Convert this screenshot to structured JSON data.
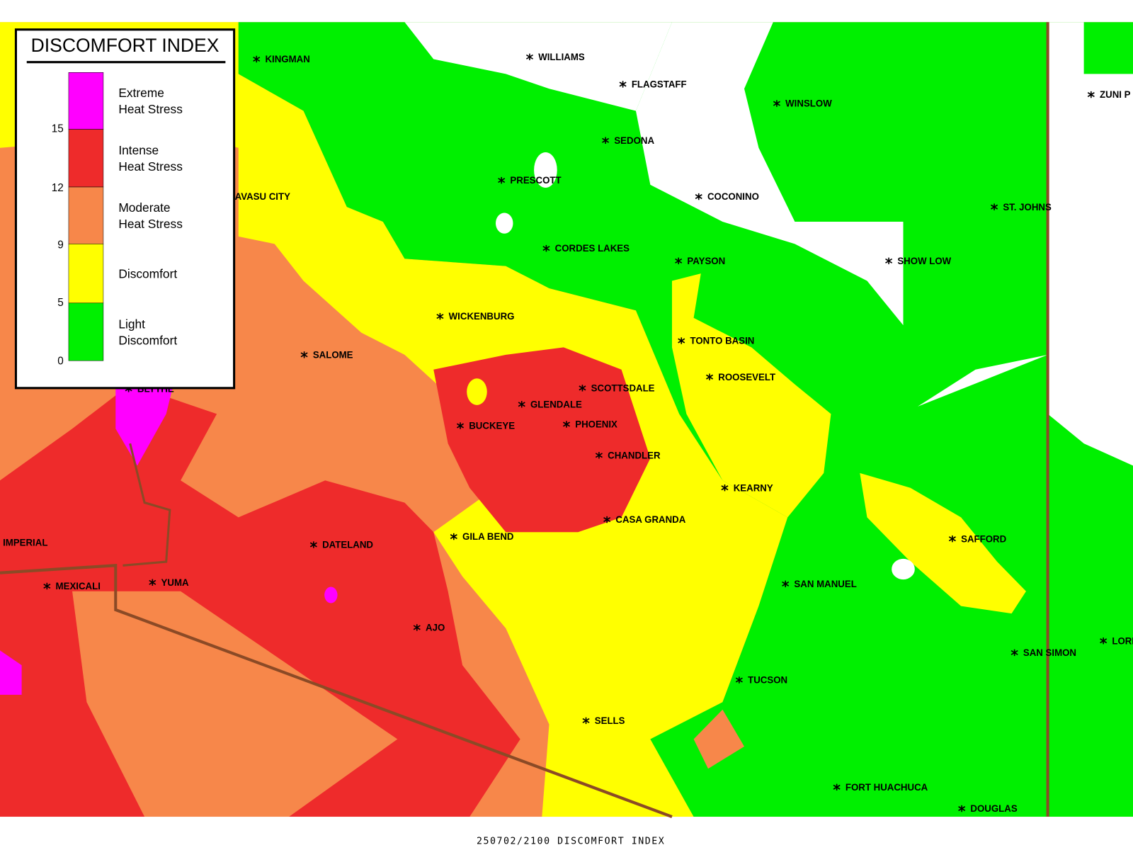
{
  "legend": {
    "title": "DISCOMFORT INDEX",
    "categories": [
      {
        "lines": [
          "Extreme",
          "Heat Stress"
        ],
        "color": "#ff00ff"
      },
      {
        "lines": [
          "Intense",
          "Heat Stress"
        ],
        "color": "#ee2b2b"
      },
      {
        "lines": [
          "Moderate",
          "Heat Stress"
        ],
        "color": "#f7874a"
      },
      {
        "lines": [
          "Discomfort"
        ],
        "color": "#ffff00"
      },
      {
        "lines": [
          "Light",
          "Discomfort"
        ],
        "color": "#00f000"
      }
    ],
    "ticks": [
      15,
      12,
      9,
      5,
      0
    ]
  },
  "cities": [
    "KINGMAN",
    "WILLIAMS",
    "FLAGSTAFF",
    "ZUNI P",
    "WINSLOW",
    "SEDONA",
    "PRESCOTT",
    "COCONINO",
    "AVASU CITY",
    "ST. JOHNS",
    "CORDES LAKES",
    "PAYSON",
    "SHOW LOW",
    "WICKENBURG",
    "TONTO BASIN",
    "SALOME",
    "ROOSEVELT",
    "BLYTHE",
    "SCOTTSDALE",
    "GLENDALE",
    "BUCKEYE",
    "PHOENIX",
    "CHANDLER",
    "KEARNY",
    "CASA GRANDA",
    "GILA BEND",
    "IMPERIAL",
    "DATELAND",
    "SAFFORD",
    "YUMA",
    "MEXICALI",
    "SAN MANUEL",
    "AJO",
    "SAN SIMON",
    "LORI",
    "TUCSON",
    "SELLS",
    "FORT HUACHUCA",
    "DOUGLAS"
  ],
  "caption": "250702/2100 DISCOMFORT INDEX"
}
